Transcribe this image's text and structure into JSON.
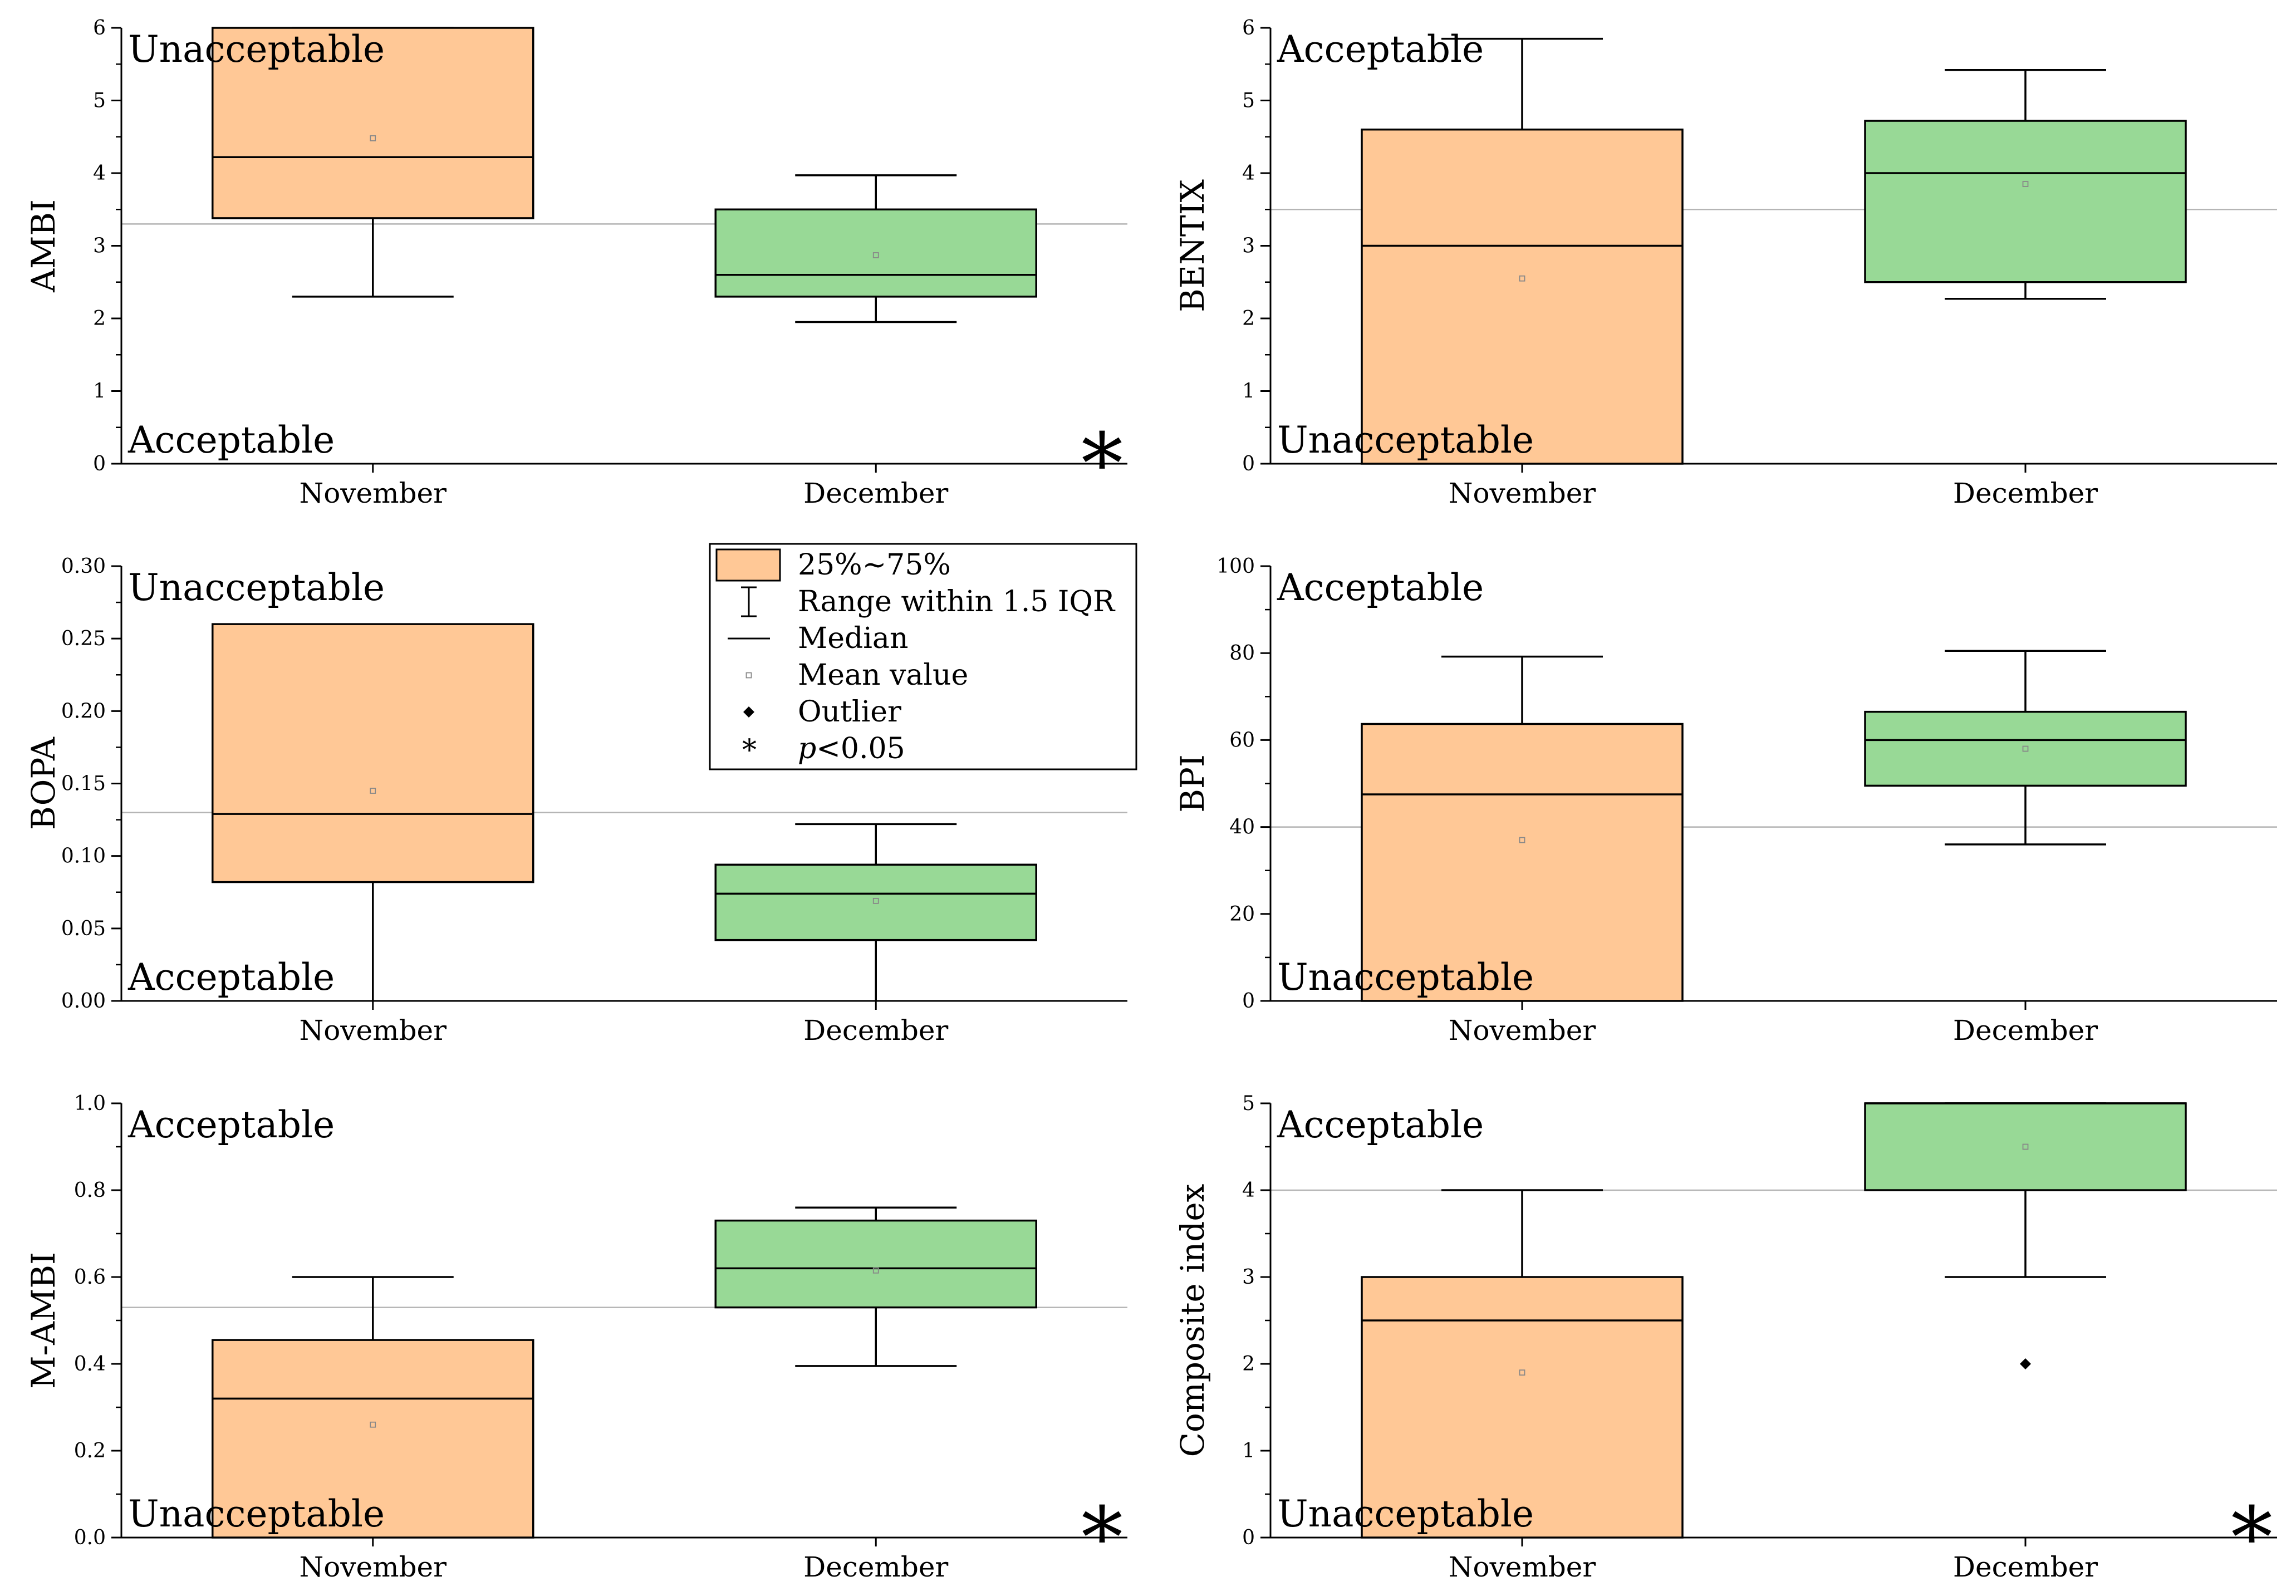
{
  "colors": {
    "november_box": "#ffc896",
    "december_box": "#98d996",
    "reference_line": "#b5b5b5",
    "stroke": "#000000",
    "mean_point": "#888888"
  },
  "legend": {
    "items": [
      {
        "symbol": "box",
        "label": "25%~75%"
      },
      {
        "symbol": "range",
        "label": "Range within 1.5 IQR"
      },
      {
        "symbol": "median",
        "label": "Median"
      },
      {
        "symbol": "mean",
        "label": "Mean value"
      },
      {
        "symbol": "outlier",
        "label": "Outlier"
      },
      {
        "symbol": "star",
        "label_prefix": "p",
        "label_suffix": "<0.05"
      }
    ]
  },
  "chart_data": [
    {
      "type": "box",
      "ylabel": "AMBI",
      "ylim": [
        0,
        6
      ],
      "yticks": [
        0,
        1,
        2,
        3,
        4,
        5,
        6
      ],
      "tick_decimals": 0,
      "categories": [
        "November",
        "December"
      ],
      "reference_line": 3.3,
      "top_label": "Unacceptable",
      "bottom_label": "Acceptable",
      "significant": true,
      "significance_marker": "*",
      "boxes": [
        {
          "q1": 3.38,
          "median": 4.22,
          "q3": 6.0,
          "whisker_low": 2.3,
          "whisker_high": 6.0,
          "mean": 4.48,
          "outliers": []
        },
        {
          "q1": 2.3,
          "median": 2.6,
          "q3": 3.5,
          "whisker_low": 1.95,
          "whisker_high": 3.97,
          "mean": 2.87,
          "outliers": []
        }
      ]
    },
    {
      "type": "box",
      "ylabel": "BENTIX",
      "ylim": [
        0,
        6
      ],
      "yticks": [
        0,
        1,
        2,
        3,
        4,
        5,
        6
      ],
      "tick_decimals": 0,
      "categories": [
        "November",
        "December"
      ],
      "reference_line": 3.5,
      "top_label": "Acceptable",
      "bottom_label": "Unacceptable",
      "significant": false,
      "significance_marker": "",
      "boxes": [
        {
          "q1": 0.0,
          "median": 3.0,
          "q3": 4.6,
          "whisker_low": 0.0,
          "whisker_high": 5.85,
          "mean": 2.55,
          "outliers": []
        },
        {
          "q1": 2.5,
          "median": 4.0,
          "q3": 4.72,
          "whisker_low": 2.27,
          "whisker_high": 5.42,
          "mean": 3.85,
          "outliers": []
        }
      ]
    },
    {
      "type": "box",
      "ylabel": "BOPA",
      "ylim": [
        0,
        0.3
      ],
      "yticks": [
        0.0,
        0.05,
        0.1,
        0.15,
        0.2,
        0.25,
        0.3
      ],
      "tick_decimals": 2,
      "categories": [
        "November",
        "December"
      ],
      "reference_line": 0.13,
      "top_label": "Unacceptable",
      "bottom_label": "Acceptable",
      "significant": false,
      "significance_marker": "",
      "boxes": [
        {
          "q1": 0.082,
          "median": 0.129,
          "q3": 0.26,
          "whisker_low": 0.0,
          "whisker_high": 0.26,
          "mean": 0.145,
          "outliers": []
        },
        {
          "q1": 0.042,
          "median": 0.074,
          "q3": 0.094,
          "whisker_low": 0.0,
          "whisker_high": 0.122,
          "mean": 0.069,
          "outliers": []
        }
      ]
    },
    {
      "type": "box",
      "ylabel": "BPI",
      "ylim": [
        0,
        100
      ],
      "yticks": [
        0,
        20,
        40,
        60,
        80,
        100
      ],
      "tick_decimals": 0,
      "categories": [
        "November",
        "December"
      ],
      "reference_line": 40,
      "top_label": "Acceptable",
      "bottom_label": "Unacceptable",
      "significant": false,
      "significance_marker": "",
      "boxes": [
        {
          "q1": 0,
          "median": 47.5,
          "q3": 63.7,
          "whisker_low": 0,
          "whisker_high": 79.2,
          "mean": 37,
          "outliers": []
        },
        {
          "q1": 49.5,
          "median": 60,
          "q3": 66.5,
          "whisker_low": 36,
          "whisker_high": 80.5,
          "mean": 58,
          "outliers": []
        }
      ]
    },
    {
      "type": "box",
      "ylabel": "M-AMBI",
      "ylim": [
        0,
        1.0
      ],
      "yticks": [
        0.0,
        0.2,
        0.4,
        0.6,
        0.8,
        1.0
      ],
      "tick_decimals": 1,
      "categories": [
        "November",
        "December"
      ],
      "reference_line": 0.53,
      "top_label": "Acceptable",
      "bottom_label": "Unacceptable",
      "significant": true,
      "significance_marker": "*",
      "boxes": [
        {
          "q1": 0.0,
          "median": 0.32,
          "q3": 0.455,
          "whisker_low": 0.0,
          "whisker_high": 0.6,
          "mean": 0.26,
          "outliers": []
        },
        {
          "q1": 0.53,
          "median": 0.62,
          "q3": 0.73,
          "whisker_low": 0.395,
          "whisker_high": 0.76,
          "mean": 0.615,
          "outliers": []
        }
      ]
    },
    {
      "type": "box",
      "ylabel": "Composite index",
      "ylim": [
        0,
        5
      ],
      "yticks": [
        0,
        1,
        2,
        3,
        4,
        5
      ],
      "tick_decimals": 0,
      "categories": [
        "November",
        "December"
      ],
      "reference_line": 4,
      "top_label": "Acceptable",
      "bottom_label": "Unacceptable",
      "significant": true,
      "significance_marker": "*",
      "boxes": [
        {
          "q1": 0,
          "median": 2.5,
          "q3": 3.0,
          "whisker_low": 0,
          "whisker_high": 4.0,
          "mean": 1.9,
          "outliers": []
        },
        {
          "q1": 4.0,
          "median": 5.0,
          "q3": 5.0,
          "whisker_low": 3.0,
          "whisker_high": 5.0,
          "mean": 4.5,
          "outliers": [
            2.0
          ]
        }
      ]
    }
  ]
}
